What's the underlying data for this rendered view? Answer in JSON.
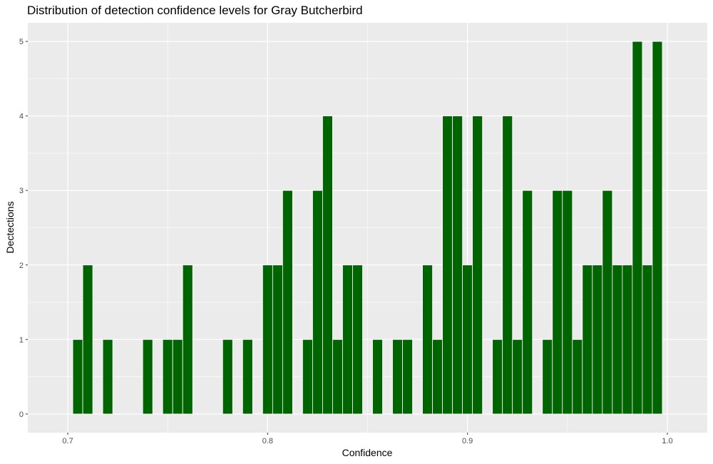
{
  "chart_data": {
    "type": "bar",
    "title": "Distribution of detection confidence levels for Gray Butcherbird",
    "xlabel": "Confidence",
    "ylabel": "Dectections",
    "xlim": [
      0.68,
      1.02
    ],
    "ylim": [
      -0.25,
      5.25
    ],
    "x_ticks": [
      0.7,
      0.8,
      0.9,
      1.0
    ],
    "x_tick_labels": [
      "0.7",
      "0.8",
      "0.9",
      "1.0"
    ],
    "y_ticks": [
      0,
      1,
      2,
      3,
      4,
      5
    ],
    "y_tick_labels": [
      "0",
      "1",
      "2",
      "3",
      "4",
      "5"
    ],
    "bin_width": 0.005,
    "grid": true,
    "bar_color": "#006400",
    "panel_background": "#ebebeb",
    "gridline_color": "#ffffff",
    "x": [
      0.705,
      0.71,
      0.72,
      0.74,
      0.75,
      0.755,
      0.76,
      0.78,
      0.79,
      0.8,
      0.805,
      0.81,
      0.82,
      0.825,
      0.83,
      0.835,
      0.84,
      0.845,
      0.855,
      0.865,
      0.87,
      0.88,
      0.885,
      0.89,
      0.895,
      0.9,
      0.905,
      0.915,
      0.92,
      0.925,
      0.93,
      0.94,
      0.945,
      0.95,
      0.955,
      0.96,
      0.965,
      0.97,
      0.975,
      0.98,
      0.985,
      0.99,
      0.995
    ],
    "values": [
      1,
      2,
      1,
      1,
      1,
      1,
      2,
      1,
      1,
      2,
      2,
      3,
      1,
      3,
      4,
      1,
      2,
      2,
      1,
      1,
      1,
      2,
      1,
      4,
      4,
      2,
      4,
      1,
      4,
      1,
      3,
      1,
      3,
      3,
      1,
      2,
      2,
      3,
      2,
      2,
      5,
      2,
      5
    ]
  }
}
